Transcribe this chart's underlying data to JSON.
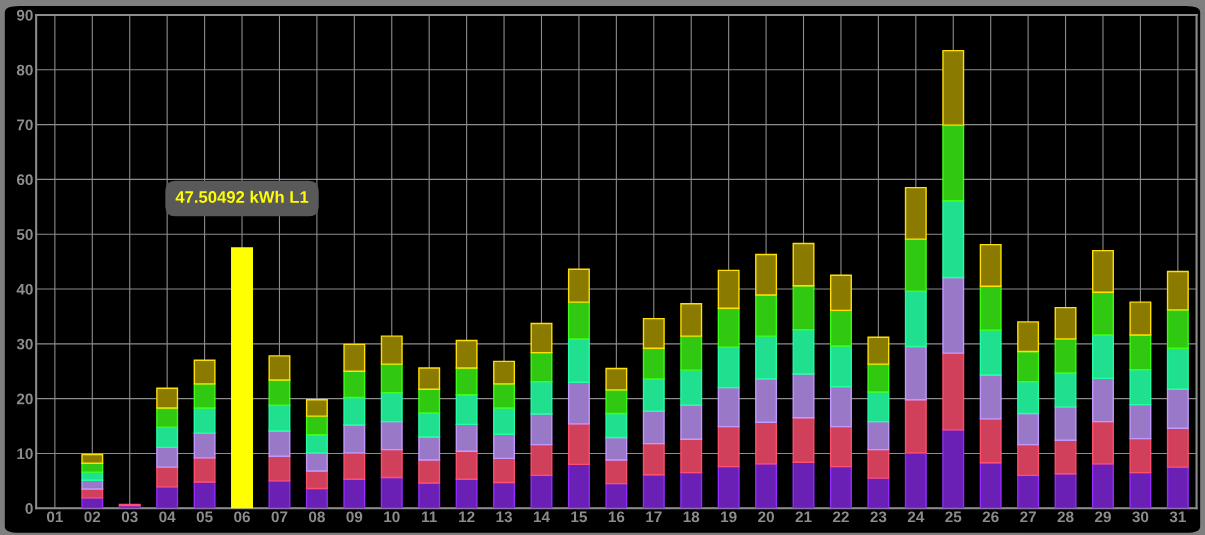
{
  "chart_data": {
    "type": "bar",
    "stacked": true,
    "grid": true,
    "legend": false,
    "categories": [
      "01",
      "02",
      "03",
      "04",
      "05",
      "06",
      "07",
      "08",
      "09",
      "10",
      "11",
      "12",
      "13",
      "14",
      "15",
      "16",
      "17",
      "18",
      "19",
      "20",
      "21",
      "22",
      "23",
      "24",
      "25",
      "26",
      "27",
      "28",
      "29",
      "30",
      "31"
    ],
    "ylim": [
      0,
      90
    ],
    "yticks": [
      0,
      10,
      20,
      30,
      40,
      50,
      60,
      70,
      80,
      90
    ],
    "series": [
      {
        "color": "#6a1fb5",
        "values": [
          null,
          1.9,
          0.5,
          3.9,
          4.8,
          null,
          5.0,
          3.6,
          5.3,
          5.6,
          4.6,
          5.3,
          4.7,
          6.0,
          8.0,
          4.5,
          6.1,
          6.5,
          7.6,
          8.1,
          8.4,
          7.6,
          5.5,
          10.1,
          14.3,
          8.3,
          6.0,
          6.3,
          8.1,
          6.5,
          7.5
        ]
      },
      {
        "color": "#d0405a",
        "values": [
          null,
          1.6,
          0.2,
          3.6,
          4.4,
          null,
          4.5,
          3.2,
          4.8,
          5.1,
          4.2,
          5.1,
          4.4,
          5.6,
          7.4,
          4.3,
          5.7,
          6.1,
          7.3,
          7.6,
          8.1,
          7.3,
          5.2,
          9.7,
          14.0,
          8.0,
          5.6,
          6.1,
          7.7,
          6.2,
          7.1
        ]
      },
      {
        "color": "#9a78c8",
        "values": [
          null,
          1.6,
          null,
          3.6,
          4.5,
          null,
          4.6,
          3.3,
          5.1,
          5.1,
          4.2,
          4.9,
          4.4,
          5.6,
          7.6,
          4.1,
          5.9,
          6.2,
          7.1,
          7.9,
          8.0,
          7.3,
          5.1,
          9.7,
          13.8,
          8.0,
          5.7,
          6.1,
          7.9,
          6.2,
          7.1
        ]
      },
      {
        "color": "#20e090",
        "values": [
          null,
          1.5,
          null,
          3.7,
          4.6,
          null,
          4.7,
          3.3,
          5.0,
          5.3,
          4.4,
          5.4,
          4.8,
          5.9,
          7.9,
          4.4,
          5.9,
          6.4,
          7.4,
          7.8,
          8.1,
          7.4,
          5.4,
          10.1,
          14.0,
          8.2,
          5.8,
          6.2,
          7.9,
          6.4,
          7.5
        ]
      },
      {
        "color": "#30c810",
        "values": [
          null,
          1.6,
          null,
          3.5,
          4.4,
          null,
          4.6,
          3.4,
          4.8,
          5.2,
          4.3,
          4.9,
          4.4,
          5.3,
          6.7,
          4.3,
          5.6,
          6.2,
          7.1,
          7.5,
          8.0,
          6.5,
          5.1,
          9.5,
          13.8,
          8.0,
          5.5,
          6.2,
          7.8,
          6.3,
          7.0
        ]
      },
      {
        "color": "#8a7a00",
        "values": [
          null,
          1.6,
          null,
          3.6,
          4.3,
          null,
          4.4,
          3.0,
          4.9,
          5.1,
          3.9,
          5.0,
          4.1,
          5.3,
          6.0,
          3.9,
          5.4,
          5.9,
          6.9,
          7.4,
          7.7,
          6.4,
          4.9,
          9.4,
          13.6,
          7.6,
          5.4,
          5.7,
          7.6,
          6.0,
          7.0
        ]
      },
      {
        "color": "#ffff00",
        "values": [
          null,
          null,
          null,
          null,
          null,
          47.50492,
          null,
          null,
          null,
          null,
          null,
          null,
          null,
          null,
          null,
          null,
          null,
          null,
          null,
          null,
          null,
          null,
          null,
          null,
          null,
          null,
          null,
          null,
          null,
          null,
          null
        ]
      }
    ],
    "annotations": [
      {
        "text": "47.50492 kWh L1",
        "x": "06",
        "y": 47.50492
      }
    ]
  }
}
